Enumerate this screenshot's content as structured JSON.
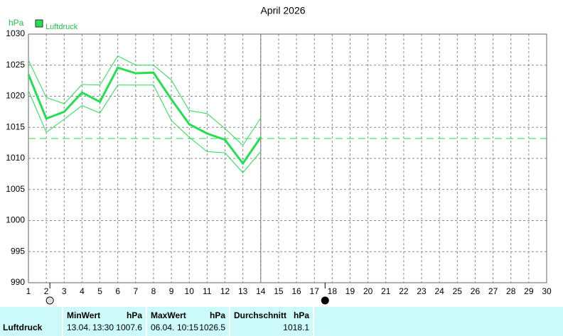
{
  "chart_data": {
    "type": "line",
    "title": "April 2026",
    "y_unit": "hPa",
    "x": [
      1,
      2,
      3,
      4,
      5,
      6,
      7,
      8,
      9,
      10,
      11,
      12,
      13,
      14,
      15,
      16,
      17,
      18,
      19,
      20,
      21,
      22,
      23,
      24,
      25,
      26,
      27,
      28,
      29,
      30
    ],
    "xlim": [
      1,
      30
    ],
    "xticks": [
      1,
      2,
      3,
      4,
      5,
      6,
      7,
      8,
      9,
      10,
      11,
      12,
      13,
      14,
      15,
      16,
      17,
      18,
      19,
      20,
      21,
      22,
      23,
      24,
      25,
      26,
      27,
      28,
      29,
      30
    ],
    "ylim": [
      990,
      1030
    ],
    "yticks": [
      990,
      995,
      1000,
      1005,
      1010,
      1015,
      1020,
      1025,
      1030
    ],
    "grid": true,
    "legend": "top-left",
    "series": [
      {
        "name": "Luftdruck",
        "color": "#22e050",
        "values": [
          1023.5,
          1016.4,
          1017.5,
          1020.6,
          1019.1,
          1024.6,
          1023.7,
          1023.8,
          1019.5,
          1015.5,
          1014.0,
          1013.0,
          1009.2,
          1013.4,
          null,
          null,
          null,
          null,
          null,
          null,
          null,
          null,
          null,
          null,
          null,
          null,
          null,
          null,
          null,
          null
        ]
      },
      {
        "color": "#22e050",
        "values": [
          1025.8,
          1019.8,
          1018.8,
          1021.9,
          1021.8,
          1026.5,
          1025.0,
          1025.0,
          1022.6,
          1017.7,
          1017.2,
          1014.8,
          1012.1,
          1016.5,
          null,
          null,
          null,
          null,
          null,
          null,
          null,
          null,
          null,
          null,
          null,
          null,
          null,
          null,
          null,
          null
        ]
      },
      {
        "color": "#22e050",
        "values": [
          1020.9,
          1014.2,
          1016.3,
          1018.5,
          1017.3,
          1021.8,
          1021.8,
          1021.8,
          1016.1,
          1013.4,
          1011.1,
          1010.9,
          1007.7,
          1011.1,
          null,
          null,
          null,
          null,
          null,
          null,
          null,
          null,
          null,
          null,
          null,
          null,
          null,
          null,
          null,
          null
        ]
      }
    ],
    "average_line": 1013.2,
    "current_x": 14,
    "full_moon_x": 2.2,
    "new_moon_x": 17.6
  },
  "table": {
    "row_label": "Luftdruck",
    "min": {
      "title": "MinWert",
      "unit": "hPa",
      "date": "13.04.",
      "time": "13:30",
      "value": "1007.6"
    },
    "max": {
      "title": "MaxWert",
      "unit": "hPa",
      "date": "06.04.",
      "time": "10:15",
      "value": "1026.5"
    },
    "avg": {
      "title": "Durchschnitt",
      "unit": "hPa",
      "value": "1018.1"
    }
  }
}
